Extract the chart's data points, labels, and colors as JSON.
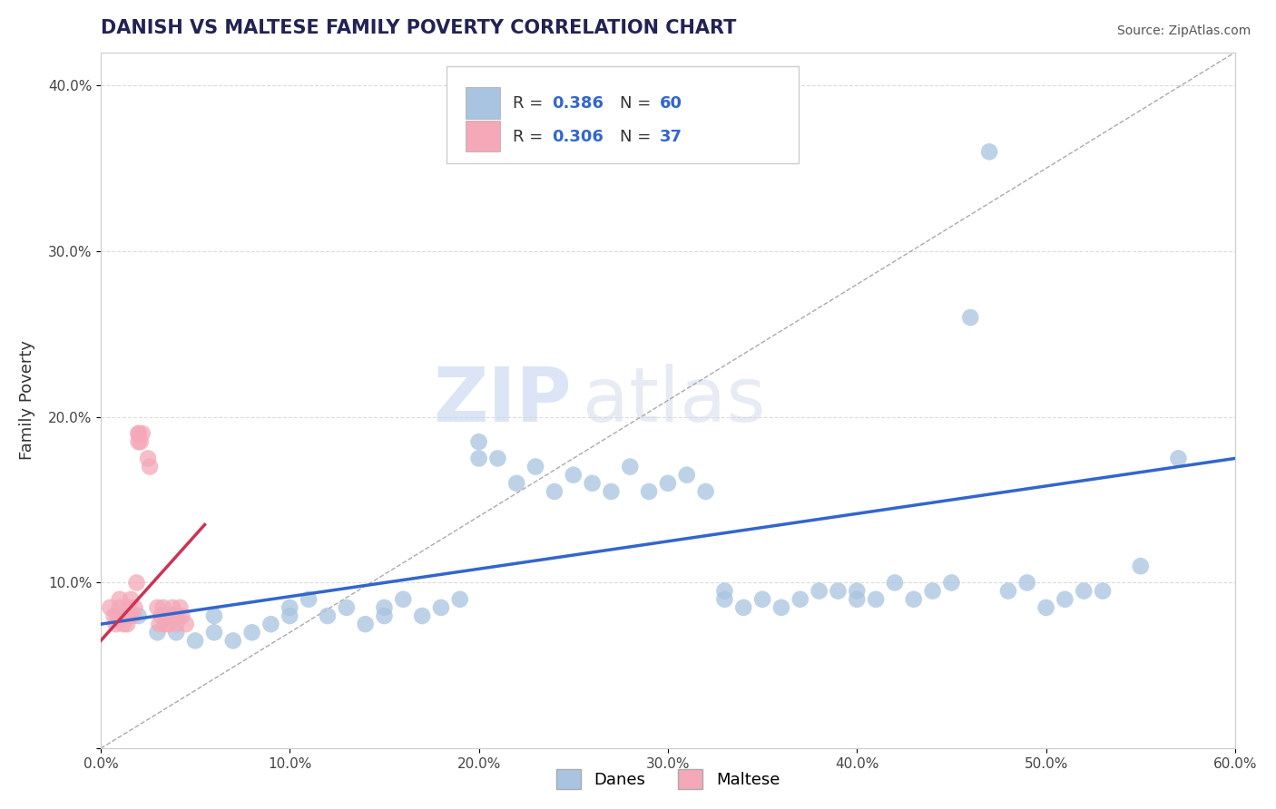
{
  "title": "DANISH VS MALTESE FAMILY POVERTY CORRELATION CHART",
  "source": "Source: ZipAtlas.com",
  "xlabel": "",
  "ylabel": "Family Poverty",
  "xlim": [
    0.0,
    0.6
  ],
  "ylim": [
    0.0,
    0.42
  ],
  "xticks": [
    0.0,
    0.1,
    0.2,
    0.3,
    0.4,
    0.5,
    0.6
  ],
  "xticklabels": [
    "0.0%",
    "10.0%",
    "20.0%",
    "30.0%",
    "40.0%",
    "50.0%",
    "60.0%"
  ],
  "yticks": [
    0.0,
    0.1,
    0.2,
    0.3,
    0.4
  ],
  "yticklabels": [
    "",
    "10.0%",
    "20.0%",
    "30.0%",
    "40.0%"
  ],
  "danes_R": 0.386,
  "danes_N": 60,
  "maltese_R": 0.306,
  "maltese_N": 37,
  "danes_color": "#a8c4e0",
  "maltese_color": "#f4a8b8",
  "danes_line_color": "#3366cc",
  "maltese_line_color": "#cc3355",
  "danes_scatter": [
    [
      0.02,
      0.08
    ],
    [
      0.03,
      0.07
    ],
    [
      0.04,
      0.07
    ],
    [
      0.05,
      0.065
    ],
    [
      0.06,
      0.07
    ],
    [
      0.06,
      0.08
    ],
    [
      0.07,
      0.065
    ],
    [
      0.08,
      0.07
    ],
    [
      0.09,
      0.075
    ],
    [
      0.1,
      0.08
    ],
    [
      0.1,
      0.085
    ],
    [
      0.11,
      0.09
    ],
    [
      0.12,
      0.08
    ],
    [
      0.13,
      0.085
    ],
    [
      0.14,
      0.075
    ],
    [
      0.15,
      0.08
    ],
    [
      0.15,
      0.085
    ],
    [
      0.16,
      0.09
    ],
    [
      0.17,
      0.08
    ],
    [
      0.18,
      0.085
    ],
    [
      0.19,
      0.09
    ],
    [
      0.2,
      0.175
    ],
    [
      0.2,
      0.185
    ],
    [
      0.21,
      0.175
    ],
    [
      0.22,
      0.16
    ],
    [
      0.23,
      0.17
    ],
    [
      0.24,
      0.155
    ],
    [
      0.25,
      0.165
    ],
    [
      0.26,
      0.16
    ],
    [
      0.27,
      0.155
    ],
    [
      0.28,
      0.17
    ],
    [
      0.29,
      0.155
    ],
    [
      0.3,
      0.16
    ],
    [
      0.31,
      0.165
    ],
    [
      0.32,
      0.155
    ],
    [
      0.33,
      0.09
    ],
    [
      0.33,
      0.095
    ],
    [
      0.34,
      0.085
    ],
    [
      0.35,
      0.09
    ],
    [
      0.36,
      0.085
    ],
    [
      0.37,
      0.09
    ],
    [
      0.38,
      0.095
    ],
    [
      0.39,
      0.095
    ],
    [
      0.4,
      0.09
    ],
    [
      0.4,
      0.095
    ],
    [
      0.41,
      0.09
    ],
    [
      0.42,
      0.1
    ],
    [
      0.43,
      0.09
    ],
    [
      0.44,
      0.095
    ],
    [
      0.45,
      0.1
    ],
    [
      0.46,
      0.26
    ],
    [
      0.47,
      0.36
    ],
    [
      0.48,
      0.095
    ],
    [
      0.49,
      0.1
    ],
    [
      0.5,
      0.085
    ],
    [
      0.51,
      0.09
    ],
    [
      0.52,
      0.095
    ],
    [
      0.53,
      0.095
    ],
    [
      0.55,
      0.11
    ],
    [
      0.57,
      0.175
    ]
  ],
  "maltese_scatter": [
    [
      0.005,
      0.085
    ],
    [
      0.007,
      0.08
    ],
    [
      0.008,
      0.075
    ],
    [
      0.009,
      0.08
    ],
    [
      0.01,
      0.085
    ],
    [
      0.01,
      0.09
    ],
    [
      0.012,
      0.075
    ],
    [
      0.013,
      0.08
    ],
    [
      0.014,
      0.075
    ],
    [
      0.015,
      0.08
    ],
    [
      0.015,
      0.085
    ],
    [
      0.016,
      0.09
    ],
    [
      0.017,
      0.08
    ],
    [
      0.018,
      0.085
    ],
    [
      0.019,
      0.1
    ],
    [
      0.02,
      0.185
    ],
    [
      0.02,
      0.19
    ],
    [
      0.02,
      0.19
    ],
    [
      0.021,
      0.185
    ],
    [
      0.022,
      0.19
    ],
    [
      0.025,
      0.175
    ],
    [
      0.026,
      0.17
    ],
    [
      0.03,
      0.085
    ],
    [
      0.031,
      0.075
    ],
    [
      0.032,
      0.08
    ],
    [
      0.033,
      0.085
    ],
    [
      0.034,
      0.075
    ],
    [
      0.035,
      0.08
    ],
    [
      0.036,
      0.075
    ],
    [
      0.037,
      0.08
    ],
    [
      0.038,
      0.085
    ],
    [
      0.039,
      0.08
    ],
    [
      0.04,
      0.075
    ],
    [
      0.041,
      0.08
    ],
    [
      0.042,
      0.085
    ],
    [
      0.043,
      0.08
    ],
    [
      0.045,
      0.075
    ]
  ],
  "background_color": "#ffffff",
  "grid_color": "#cccccc"
}
